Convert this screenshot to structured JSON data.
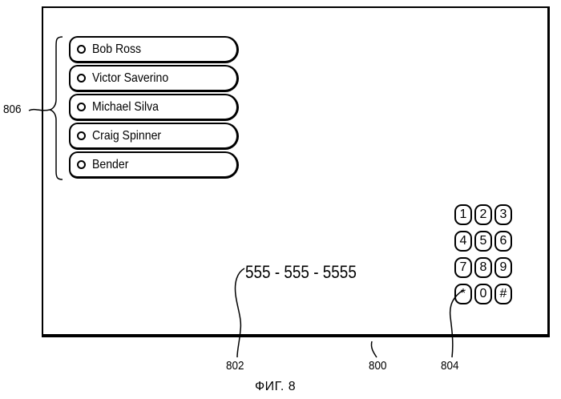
{
  "contacts": [
    {
      "name": "Bob Ross"
    },
    {
      "name": "Victor Saverino"
    },
    {
      "name": "Michael Silva"
    },
    {
      "name": "Craig Spinner"
    },
    {
      "name": "Bender"
    }
  ],
  "phone_number": "555 - 555 - 5555",
  "keypad": [
    "1",
    "2",
    "3",
    "4",
    "5",
    "6",
    "7",
    "8",
    "9",
    "*",
    "0",
    "#"
  ],
  "reference_numerals": {
    "contact_list": "806",
    "phone_number": "802",
    "screen": "800",
    "keypad": "804"
  },
  "figure_caption": "ФИГ. 8"
}
